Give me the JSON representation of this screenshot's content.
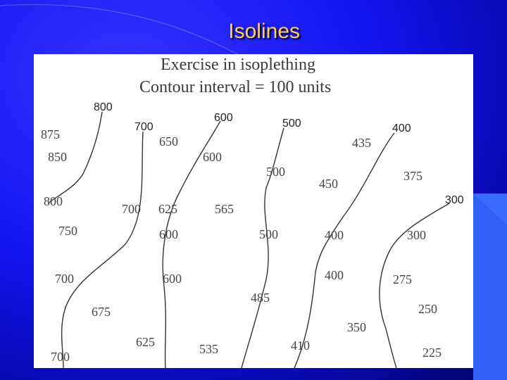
{
  "slide": {
    "title": "Isolines",
    "exercise": {
      "heading": "Exercise in isoplething",
      "subheading": "Contour interval = 100 units"
    },
    "isoline_labels": [
      "800",
      "700",
      "600",
      "500",
      "400",
      "300"
    ],
    "points": [
      "875",
      "850",
      "800",
      "750",
      "700",
      "675",
      "700",
      "650",
      "600",
      "700",
      "625",
      "600",
      "600",
      "625",
      "565",
      "535",
      "500",
      "500",
      "485",
      "450",
      "400",
      "400",
      "350",
      "410",
      "435",
      "375",
      "300",
      "275",
      "250",
      "225"
    ],
    "colors": {
      "background": "#1414f0",
      "title": "#ffcc66",
      "panel": "#ffffff"
    }
  }
}
